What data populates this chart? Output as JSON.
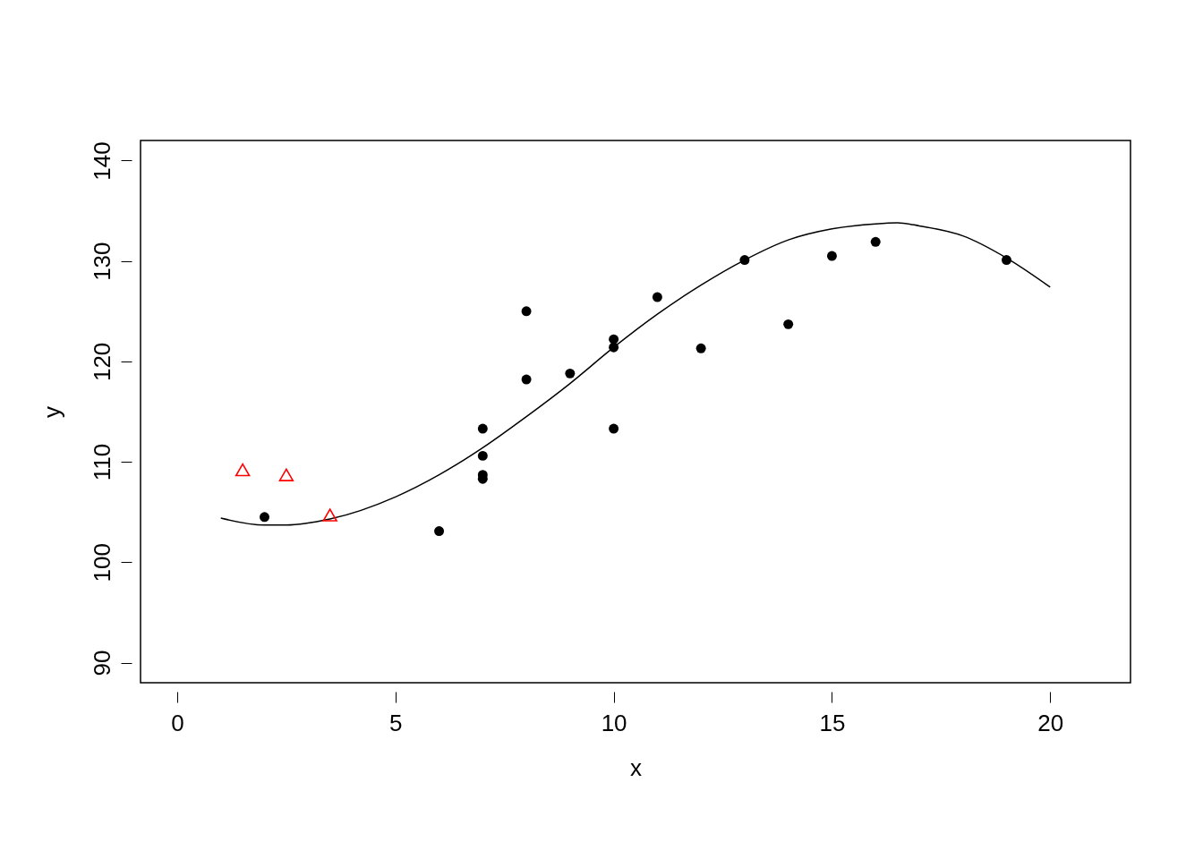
{
  "chart_data": {
    "type": "scatter",
    "xlabel": "x",
    "ylabel": "y",
    "xlim": [
      -0.84,
      21.84
    ],
    "ylim": [
      88,
      142
    ],
    "xticks": [
      0,
      5,
      10,
      15,
      20
    ],
    "yticks": [
      90,
      100,
      110,
      120,
      130,
      140
    ],
    "grid": false,
    "series": [
      {
        "type": "line",
        "color": "#000000",
        "marker": "none",
        "line_style": "solid",
        "x": [
          1,
          2,
          2.5,
          3.5,
          5,
          6,
          7,
          8,
          9,
          10,
          11,
          12,
          13,
          14,
          15,
          16,
          16.5,
          17,
          18,
          19,
          20
        ],
        "values": [
          104.4,
          103.7,
          103.7,
          104.3,
          106.5,
          108.7,
          111.4,
          114.5,
          117.8,
          121.4,
          124.7,
          127.6,
          130.1,
          132.1,
          133.2,
          133.7,
          133.8,
          133.5,
          132.5,
          130.3,
          127.4
        ]
      },
      {
        "color": "#000000",
        "marker": "circle",
        "x": [
          2,
          6,
          7,
          7,
          7,
          7,
          8,
          8,
          9,
          10,
          10,
          10,
          11,
          12,
          13,
          14,
          15,
          16,
          19
        ],
        "values": [
          104.5,
          103.1,
          113.3,
          110.6,
          108.7,
          108.3,
          125.0,
          118.2,
          118.8,
          122.2,
          121.4,
          113.3,
          126.4,
          121.3,
          130.1,
          123.7,
          130.5,
          131.9,
          130.1
        ]
      },
      {
        "color": "#ff0000",
        "marker": "triangle",
        "x": [
          1.5,
          2.5,
          3.5
        ],
        "values": [
          109.2,
          108.7,
          104.7
        ]
      }
    ]
  }
}
